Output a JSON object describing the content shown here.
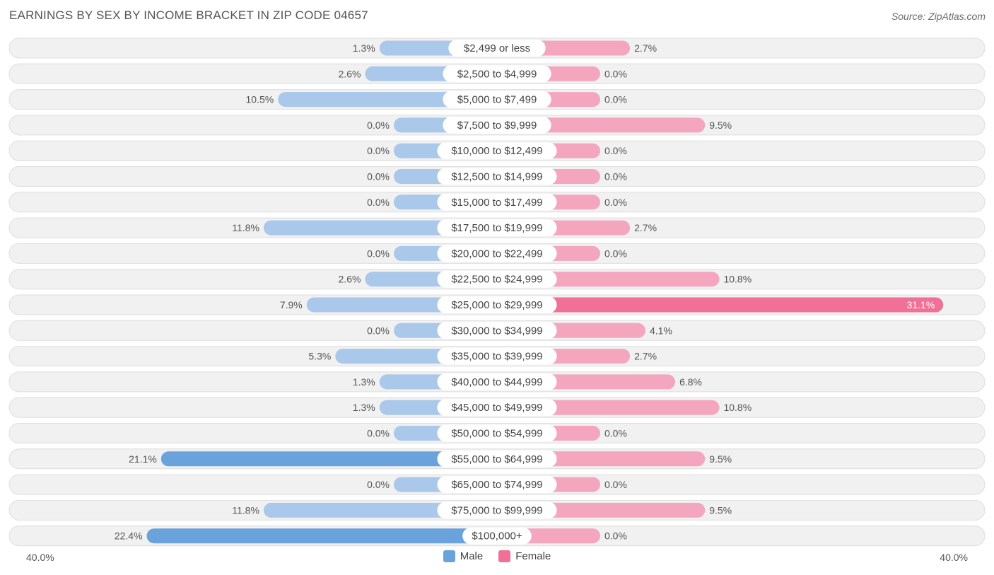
{
  "title": "EARNINGS BY SEX BY INCOME BRACKET IN ZIP CODE 04657",
  "source": "Source: ZipAtlas.com",
  "colors": {
    "male": "#6aa2dc",
    "male_light": "#a9c8ea",
    "female": "#f07097",
    "female_light": "#f4a6bf"
  },
  "chart_data": {
    "type": "bar",
    "orientation": "horizontal-diverging",
    "title": "EARNINGS BY SEX BY INCOME BRACKET IN ZIP CODE 04657",
    "categories": [
      "$2,499 or less",
      "$2,500 to $4,999",
      "$5,000 to $7,499",
      "$7,500 to $9,999",
      "$10,000 to $12,499",
      "$12,500 to $14,999",
      "$15,000 to $17,499",
      "$17,500 to $19,999",
      "$20,000 to $22,499",
      "$22,500 to $24,999",
      "$25,000 to $29,999",
      "$30,000 to $34,999",
      "$35,000 to $39,999",
      "$40,000 to $44,999",
      "$45,000 to $49,999",
      "$50,000 to $54,999",
      "$55,000 to $64,999",
      "$65,000 to $74,999",
      "$75,000 to $99,999",
      "$100,000+"
    ],
    "series": [
      {
        "name": "Male",
        "values": [
          1.3,
          2.6,
          10.5,
          0.0,
          0.0,
          0.0,
          0.0,
          11.8,
          0.0,
          2.6,
          7.9,
          0.0,
          5.3,
          1.3,
          1.3,
          0.0,
          21.1,
          0.0,
          11.8,
          22.4
        ],
        "labels": [
          "1.3%",
          "2.6%",
          "10.5%",
          "0.0%",
          "0.0%",
          "0.0%",
          "0.0%",
          "11.8%",
          "0.0%",
          "2.6%",
          "7.9%",
          "0.0%",
          "5.3%",
          "1.3%",
          "1.3%",
          "0.0%",
          "21.1%",
          "0.0%",
          "11.8%",
          "22.4%"
        ]
      },
      {
        "name": "Female",
        "values": [
          2.7,
          0.0,
          0.0,
          9.5,
          0.0,
          0.0,
          0.0,
          2.7,
          0.0,
          10.8,
          31.1,
          4.1,
          2.7,
          6.8,
          10.8,
          0.0,
          9.5,
          0.0,
          9.5,
          0.0
        ],
        "labels": [
          "2.7%",
          "0.0%",
          "0.0%",
          "9.5%",
          "0.0%",
          "0.0%",
          "0.0%",
          "2.7%",
          "0.0%",
          "10.8%",
          "31.1%",
          "4.1%",
          "2.7%",
          "6.8%",
          "10.8%",
          "0.0%",
          "9.5%",
          "0.0%",
          "9.5%",
          "0.0%"
        ]
      }
    ],
    "xlim": [
      -40,
      40
    ],
    "axis_left_label": "40.0%",
    "axis_right_label": "40.0%",
    "legend": [
      "Male",
      "Female"
    ],
    "legend_position": "bottom-center"
  }
}
